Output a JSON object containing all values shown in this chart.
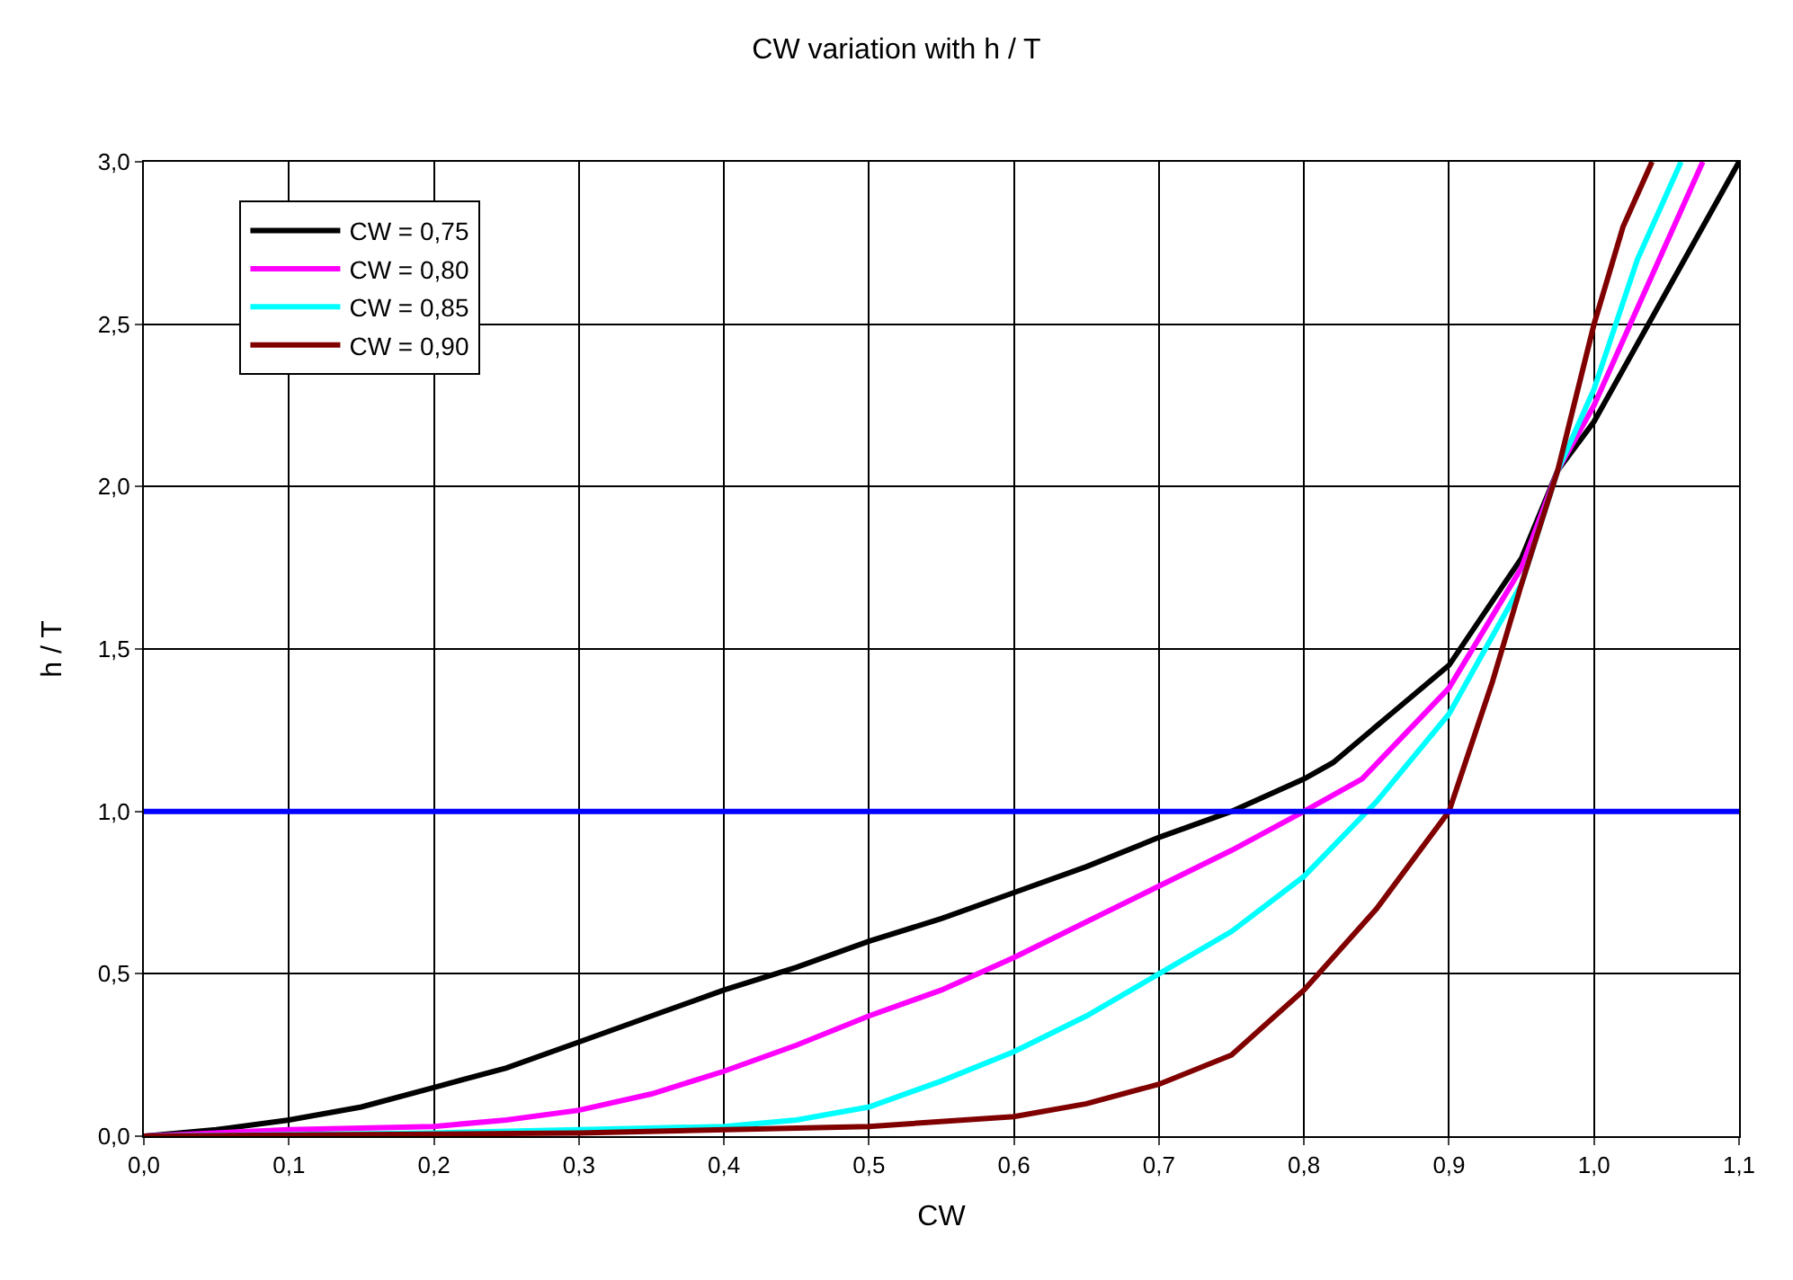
{
  "chart_data": {
    "type": "line",
    "title": "CW variation with h / T",
    "xlabel": "CW",
    "ylabel": "h / T",
    "xlim": [
      0,
      1.1
    ],
    "ylim": [
      0,
      3
    ],
    "xticks": [
      {
        "value": 0,
        "label": "0,0"
      },
      {
        "value": 0.1,
        "label": "0,1"
      },
      {
        "value": 0.2,
        "label": "0,2"
      },
      {
        "value": 0.3,
        "label": "0,3"
      },
      {
        "value": 0.4,
        "label": "0,4"
      },
      {
        "value": 0.5,
        "label": "0,5"
      },
      {
        "value": 0.6,
        "label": "0,6"
      },
      {
        "value": 0.7,
        "label": "0,7"
      },
      {
        "value": 0.8,
        "label": "0,8"
      },
      {
        "value": 0.9,
        "label": "0,9"
      },
      {
        "value": 1.0,
        "label": "1,0"
      },
      {
        "value": 1.1,
        "label": "1,1"
      }
    ],
    "yticks": [
      {
        "value": 0,
        "label": "0,0"
      },
      {
        "value": 0.5,
        "label": "0,5"
      },
      {
        "value": 1.0,
        "label": "1,0"
      },
      {
        "value": 1.5,
        "label": "1,5"
      },
      {
        "value": 2.0,
        "label": "2,0"
      },
      {
        "value": 2.5,
        "label": "2,5"
      },
      {
        "value": 3.0,
        "label": "3,0"
      }
    ],
    "grid": true,
    "legend": "top left",
    "marker": "none",
    "line_style": "solid",
    "ref_lines": [
      {
        "axis": "y",
        "value": 1.0,
        "color": "#0000ff"
      }
    ],
    "series": [
      {
        "name": "CW = 0,75",
        "color": "#000000",
        "x": [
          0,
          0.05,
          0.1,
          0.15,
          0.2,
          0.25,
          0.3,
          0.35,
          0.4,
          0.45,
          0.5,
          0.55,
          0.6,
          0.65,
          0.7,
          0.75,
          0.8,
          0.82,
          0.86,
          0.9,
          0.95,
          0.975,
          1.0,
          1.05,
          1.1
        ],
        "values": [
          0,
          0.02,
          0.05,
          0.09,
          0.15,
          0.21,
          0.29,
          0.37,
          0.45,
          0.52,
          0.6,
          0.67,
          0.75,
          0.83,
          0.92,
          1.0,
          1.1,
          1.15,
          1.3,
          1.45,
          1.78,
          2.05,
          2.2,
          2.6,
          3.0
        ]
      },
      {
        "name": "CW = 0,80",
        "color": "#ff00ff",
        "x": [
          0,
          0.1,
          0.2,
          0.25,
          0.3,
          0.35,
          0.4,
          0.45,
          0.5,
          0.55,
          0.6,
          0.65,
          0.7,
          0.75,
          0.8,
          0.84,
          0.9,
          0.95,
          0.975,
          1.0,
          1.05,
          1.075
        ],
        "values": [
          0,
          0.02,
          0.03,
          0.05,
          0.08,
          0.13,
          0.2,
          0.28,
          0.37,
          0.45,
          0.55,
          0.66,
          0.77,
          0.88,
          1.0,
          1.1,
          1.38,
          1.75,
          2.05,
          2.25,
          2.75,
          3.0
        ]
      },
      {
        "name": "CW = 0,85",
        "color": "#00ffff",
        "x": [
          0,
          0.2,
          0.3,
          0.4,
          0.45,
          0.5,
          0.55,
          0.6,
          0.65,
          0.7,
          0.75,
          0.8,
          0.85,
          0.9,
          0.95,
          0.975,
          1.0,
          1.03,
          1.06
        ],
        "values": [
          0,
          0.01,
          0.02,
          0.03,
          0.05,
          0.09,
          0.17,
          0.26,
          0.37,
          0.5,
          0.63,
          0.8,
          1.03,
          1.3,
          1.7,
          2.05,
          2.3,
          2.7,
          3.0
        ]
      },
      {
        "name": "CW = 0,90",
        "color": "#800000",
        "x": [
          0,
          0.3,
          0.5,
          0.6,
          0.65,
          0.7,
          0.75,
          0.8,
          0.85,
          0.9,
          0.93,
          0.95,
          0.975,
          1.0,
          1.02,
          1.04
        ],
        "values": [
          0,
          0.01,
          0.03,
          0.06,
          0.1,
          0.16,
          0.25,
          0.45,
          0.7,
          1.0,
          1.4,
          1.7,
          2.05,
          2.5,
          2.8,
          3.0
        ]
      }
    ]
  }
}
